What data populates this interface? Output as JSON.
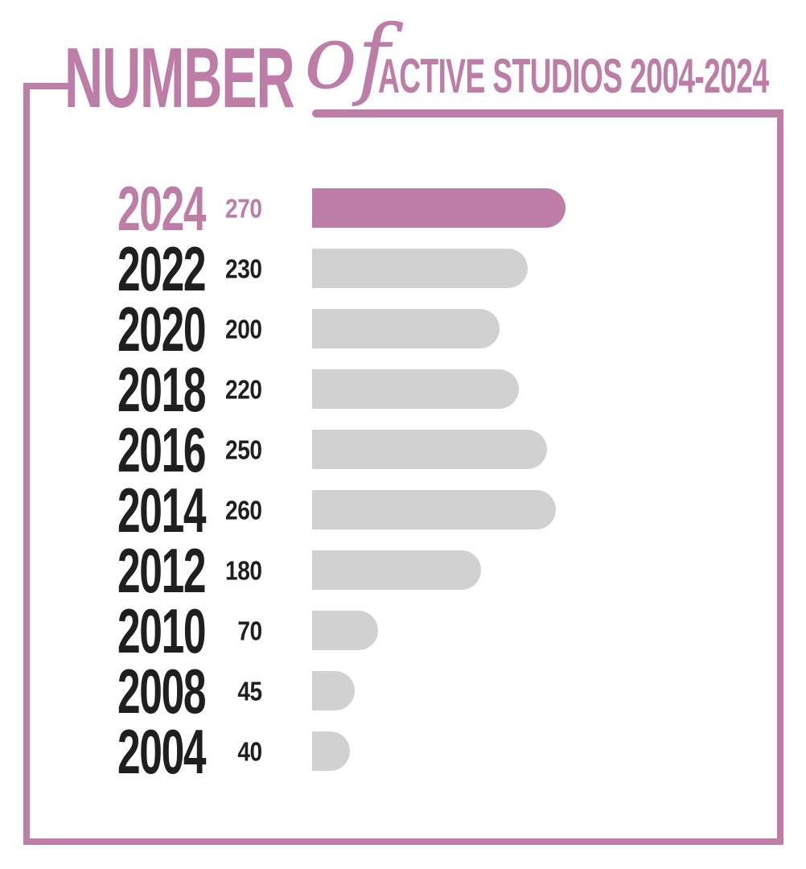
{
  "title": {
    "word_number": "NUMBER",
    "word_of": "of",
    "word_rest": "ACTIVE STUDIOS 2004-2024"
  },
  "colors": {
    "accent": "#bd7da7",
    "bar_gray": "#d1d1d1",
    "text_dark": "#1f1f1f",
    "background": "#ffffff"
  },
  "chart_data": {
    "type": "bar",
    "orientation": "horizontal",
    "title": "NUMBER of ACTIVE STUDIOS 2004-2024",
    "categories": [
      "2024",
      "2022",
      "2020",
      "2018",
      "2016",
      "2014",
      "2012",
      "2010",
      "2008",
      "2004"
    ],
    "values": [
      270,
      230,
      200,
      220,
      250,
      260,
      180,
      70,
      45,
      40
    ],
    "highlighted_category": "2024",
    "value_labels_shown": true,
    "legend": "none",
    "grid": "off",
    "xlim": [
      0,
      270
    ]
  }
}
